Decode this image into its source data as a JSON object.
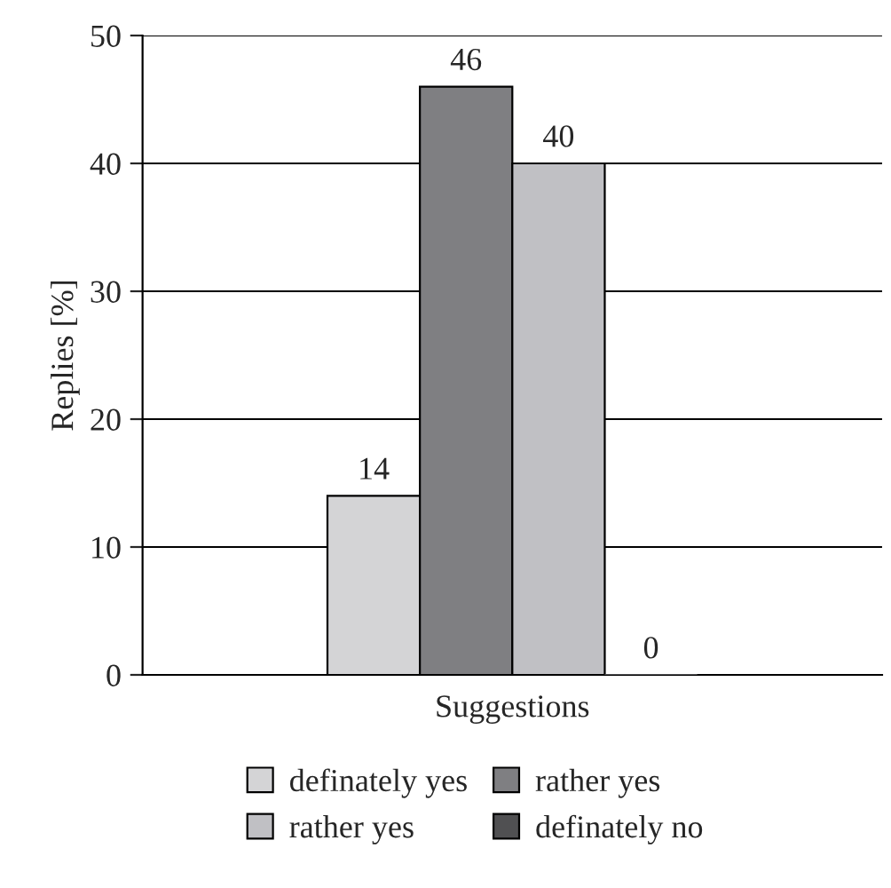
{
  "chart_data": {
    "type": "bar",
    "ylabel": "Replies [%]",
    "categories": [
      "Suggestions"
    ],
    "series": [
      {
        "name": "definately yes",
        "color": "#d4d4d6",
        "values": [
          14
        ]
      },
      {
        "name": "rather yes",
        "color": "#7f7f82",
        "values": [
          46
        ]
      },
      {
        "name": "rather yes",
        "color": "#c0c0c4",
        "values": [
          40
        ]
      },
      {
        "name": "definately no",
        "color": "#505052",
        "values": [
          0
        ]
      }
    ],
    "ylim": [
      0,
      50
    ],
    "yticks": [
      0,
      10,
      20,
      30,
      40,
      50
    ],
    "grid": "y",
    "legend": "bottom",
    "data_labels": true
  }
}
